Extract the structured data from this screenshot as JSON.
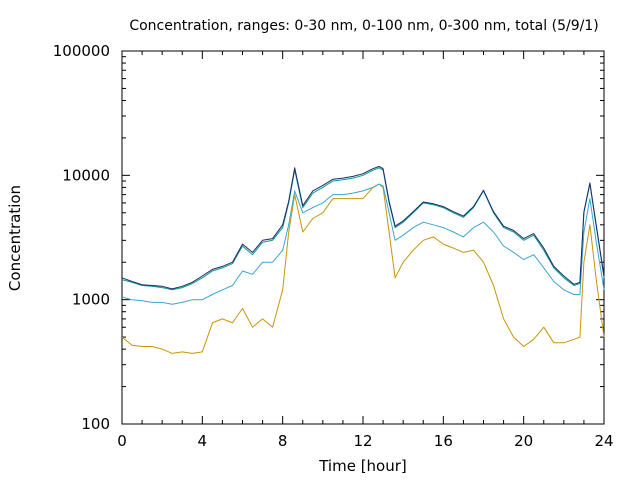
{
  "chart_data": {
    "type": "line",
    "title": "Concentration, ranges: 0-30 nm, 0-100 nm, 0-300 nm, total (5/9/1)",
    "xlabel": "Time [hour]",
    "ylabel": "Concentration",
    "xlim": [
      0,
      24
    ],
    "ylim": [
      100,
      100000
    ],
    "yscale": "log",
    "x_ticks": [
      0,
      4,
      8,
      12,
      16,
      20,
      24
    ],
    "x_tick_labels": [
      "0",
      "4",
      "8",
      "12",
      "16",
      "20",
      "24"
    ],
    "y_ticks": [
      100,
      1000,
      10000,
      100000
    ],
    "y_tick_labels": [
      "100",
      "1000",
      "10000",
      "100000"
    ],
    "grid": false,
    "legend": "none",
    "colors": {
      "0-30 nm": "#c8940a",
      "0-100 nm": "#3aa6d0",
      "0-300 nm": "#0a9a8a",
      "total": "#1a2a6e",
      "total_accent": "#a0206a"
    },
    "x": [
      0,
      0.5,
      1,
      1.5,
      2,
      2.5,
      3,
      3.5,
      4,
      4.5,
      5,
      5.5,
      6,
      6.5,
      7,
      7.5,
      8,
      8.3,
      8.6,
      9,
      9.5,
      10,
      10.5,
      11,
      11.5,
      12,
      12.5,
      12.8,
      13,
      13.3,
      13.6,
      14,
      14.5,
      15,
      15.5,
      16,
      16.5,
      17,
      17.5,
      18,
      18.5,
      19,
      19.5,
      20,
      20.5,
      21,
      21.5,
      22,
      22.5,
      22.8,
      23,
      23.3,
      23.6,
      24
    ],
    "series": [
      {
        "values": [
          500,
          430,
          420,
          420,
          400,
          370,
          380,
          370,
          380,
          650,
          700,
          650,
          850,
          600,
          700,
          600,
          1200,
          3500,
          7000,
          3500,
          4500,
          5000,
          6500,
          6500,
          6500,
          6500,
          8000,
          8500,
          8000,
          3500,
          1500,
          2000,
          2500,
          3000,
          3200,
          2800,
          2600,
          2400,
          2500,
          2000,
          1300,
          700,
          500,
          420,
          480,
          600,
          450,
          450,
          480,
          500,
          2000,
          4000,
          1500,
          500
        ]
      },
      {
        "values": [
          1050,
          1000,
          980,
          950,
          950,
          920,
          950,
          1000,
          1000,
          1100,
          1200,
          1300,
          1700,
          1600,
          2000,
          2000,
          2500,
          4000,
          7500,
          5000,
          5500,
          6000,
          7000,
          7000,
          7200,
          7500,
          8000,
          8500,
          8200,
          5000,
          3000,
          3300,
          3800,
          4200,
          4000,
          3800,
          3500,
          3200,
          3800,
          4200,
          3500,
          2700,
          2400,
          2100,
          2300,
          1800,
          1400,
          1200,
          1100,
          1100,
          3500,
          6500,
          3000,
          1200
        ]
      },
      {
        "values": [
          1450,
          1380,
          1300,
          1280,
          1250,
          1200,
          1250,
          1350,
          1500,
          1700,
          1800,
          1950,
          2700,
          2300,
          2900,
          3000,
          3800,
          6000,
          11000,
          5500,
          7200,
          8000,
          9000,
          9200,
          9500,
          10000,
          11000,
          11500,
          11000,
          6000,
          3800,
          4200,
          5000,
          6000,
          5800,
          5500,
          5000,
          4600,
          5500,
          7500,
          5000,
          3800,
          3500,
          3000,
          3300,
          2500,
          1800,
          1500,
          1300,
          1350,
          5000,
          8500,
          4000,
          1500
        ]
      },
      {
        "values": [
          1500,
          1400,
          1320,
          1300,
          1280,
          1220,
          1280,
          1380,
          1550,
          1750,
          1850,
          2000,
          2800,
          2400,
          3000,
          3100,
          4000,
          6200,
          11500,
          5700,
          7500,
          8300,
          9300,
          9500,
          9800,
          10300,
          11300,
          11800,
          11300,
          6200,
          3900,
          4300,
          5100,
          6100,
          5900,
          5600,
          5100,
          4700,
          5600,
          7600,
          5100,
          3900,
          3600,
          3100,
          3400,
          2600,
          1850,
          1550,
          1330,
          1380,
          5100,
          8700,
          4100,
          1550
        ]
      }
    ]
  }
}
